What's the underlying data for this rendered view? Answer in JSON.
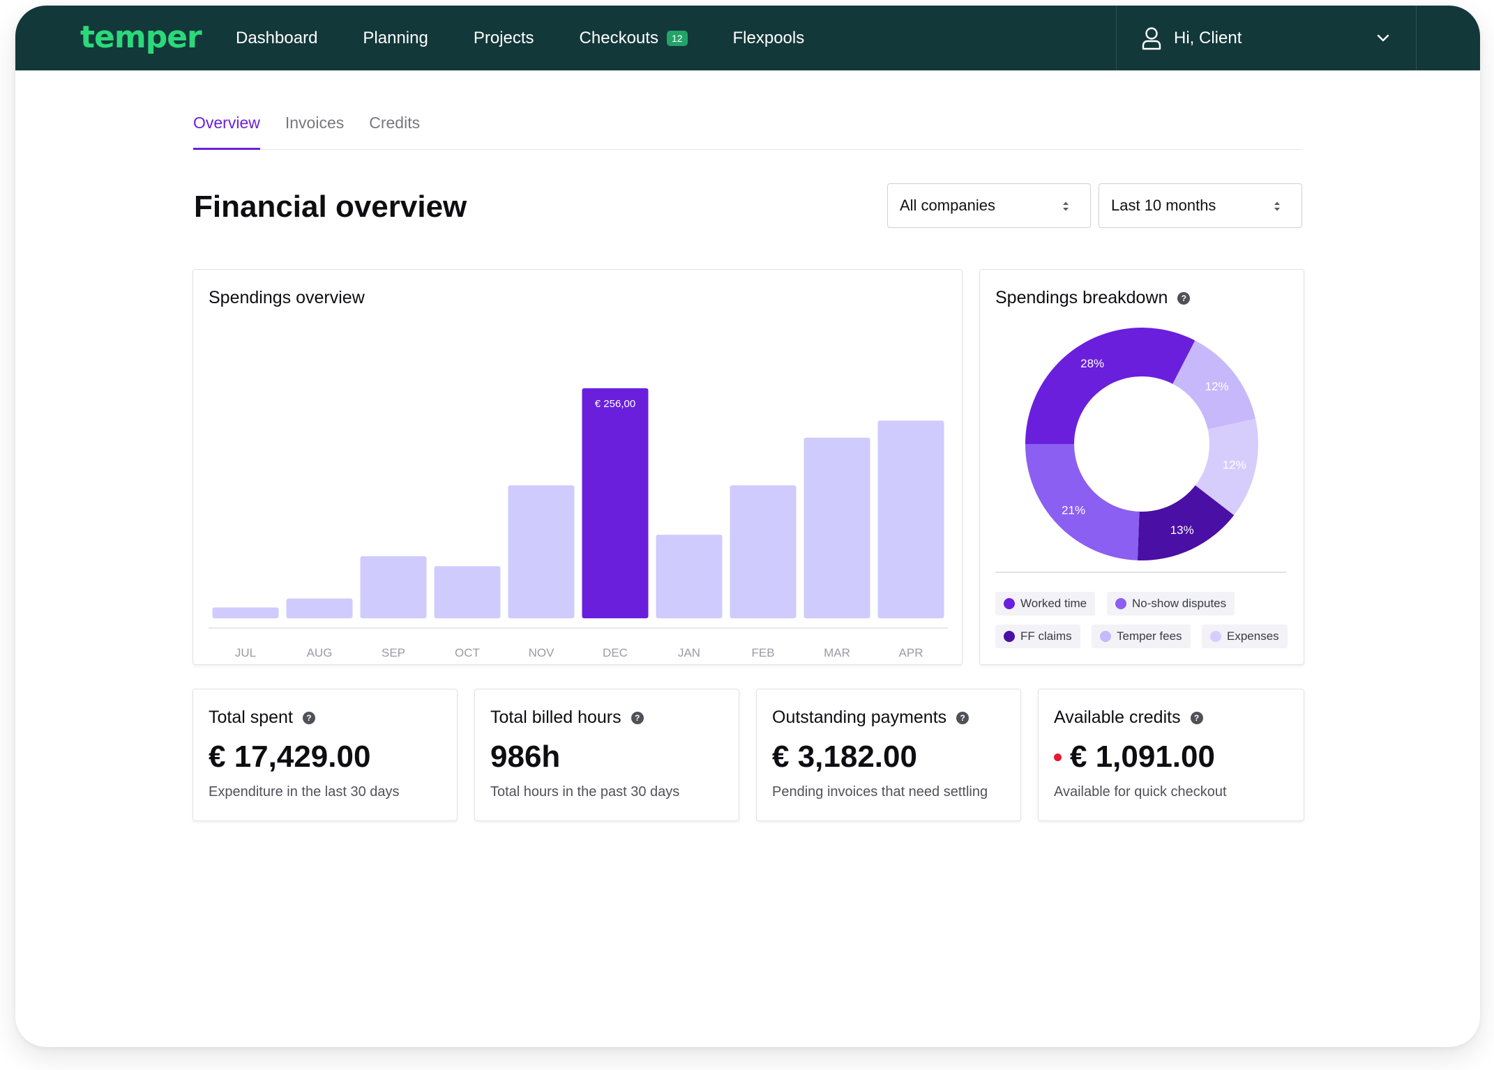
{
  "brand": {
    "logo_text": "temper"
  },
  "nav": {
    "items": [
      {
        "label": "Dashboard"
      },
      {
        "label": "Planning"
      },
      {
        "label": "Projects"
      },
      {
        "label": "Checkouts",
        "badge": "12"
      },
      {
        "label": "Flexpools"
      }
    ],
    "user_greeting": "Hi, Client",
    "user_icon": "user-icon",
    "menu_icon": "chevron-down-icon"
  },
  "tabs": [
    {
      "label": "Overview",
      "active": true
    },
    {
      "label": "Invoices",
      "active": false
    },
    {
      "label": "Credits",
      "active": false
    }
  ],
  "page": {
    "title": "Financial overview"
  },
  "filters": {
    "company": {
      "selected": "All companies",
      "icon": "sort-arrows-icon"
    },
    "period": {
      "selected": "Last 10 months",
      "icon": "sort-arrows-icon"
    }
  },
  "spendings_overview": {
    "title": "Spendings overview",
    "chart_data": {
      "type": "bar",
      "title": "Spendings overview",
      "categories": [
        "JUL",
        "AUG",
        "SEP",
        "OCT",
        "NOV",
        "DEC",
        "JAN",
        "FEB",
        "MAR",
        "APR"
      ],
      "values": [
        12,
        22,
        69,
        58,
        148,
        256,
        93,
        148,
        201,
        220
      ],
      "highlighted_category": "DEC",
      "highlight_label": "€ 256,00",
      "ylim": [
        0,
        256
      ],
      "grid": false,
      "colors": {
        "bar": "#cfcbfd",
        "highlight": "#6a1fdd"
      }
    }
  },
  "spendings_breakdown": {
    "title": "Spendings breakdown",
    "help_icon": "help-icon",
    "chart_data": {
      "type": "pie",
      "donut": true,
      "slices": [
        {
          "label": "Worked time",
          "value": 28,
          "display": "28%",
          "color": "#6a1fdd"
        },
        {
          "label": "Temper fees",
          "value": 12,
          "display": "12%",
          "color": "#c7b8fb"
        },
        {
          "label": "Expenses",
          "value": 12,
          "display": "12%",
          "color": "#d6cdfc"
        },
        {
          "label": "FF claims",
          "value": 13,
          "display": "13%",
          "color": "#4a0fa4"
        },
        {
          "label": "No-show disputes",
          "value": 21,
          "display": "21%",
          "color": "#8b5ff1"
        }
      ],
      "legend": [
        "Worked time",
        "No-show disputes",
        "FF claims",
        "Temper fees",
        "Expenses"
      ],
      "legend_placement": "bottom"
    }
  },
  "stats": [
    {
      "title": "Total spent",
      "value": "€ 17,429.00",
      "description": "Expenditure in the last 30 days",
      "alert": false
    },
    {
      "title": "Total billed hours",
      "value": "986h",
      "description": "Total hours in the past 30 days",
      "alert": false
    },
    {
      "title": "Outstanding payments",
      "value": "€ 3,182.00",
      "description": "Pending invoices that need settling",
      "alert": false
    },
    {
      "title": "Available credits",
      "value": "€ 1,091.00",
      "description": "Available for quick checkout",
      "alert": true
    }
  ],
  "colors": {
    "topbar": "#13383a",
    "brand": "#2bd97a",
    "accent": "#6a20dc",
    "badge": "#23a36a",
    "alert": "#e5192f"
  }
}
